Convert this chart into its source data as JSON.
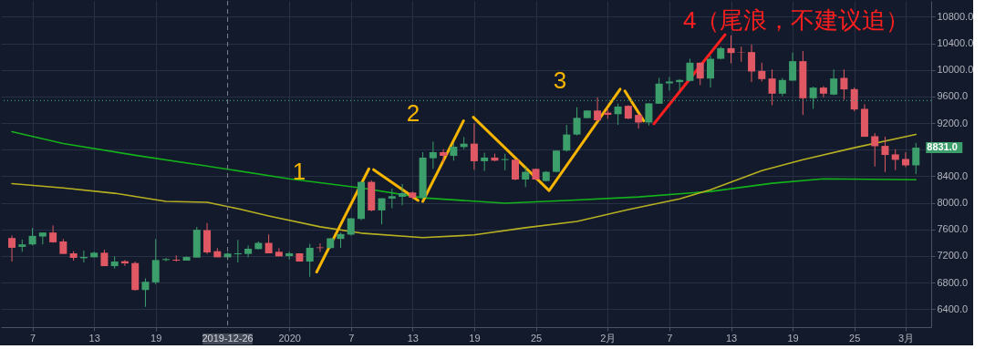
{
  "chart_data": {
    "type": "candlestick",
    "x": [
      "2019-12-05",
      "2019-12-06",
      "2019-12-07",
      "2019-12-08",
      "2019-12-09",
      "2019-12-10",
      "2019-12-11",
      "2019-12-12",
      "2019-12-13",
      "2019-12-14",
      "2019-12-15",
      "2019-12-16",
      "2019-12-17",
      "2019-12-18",
      "2019-12-19",
      "2019-12-20",
      "2019-12-21",
      "2019-12-22",
      "2019-12-23",
      "2019-12-24",
      "2019-12-25",
      "2019-12-26",
      "2019-12-27",
      "2019-12-28",
      "2019-12-29",
      "2019-12-30",
      "2019-12-31",
      "2020-01-01",
      "2020-01-02",
      "2020-01-03",
      "2020-01-04",
      "2020-01-05",
      "2020-01-06",
      "2020-01-07",
      "2020-01-08",
      "2020-01-09",
      "2020-01-10",
      "2020-01-11",
      "2020-01-12",
      "2020-01-13",
      "2020-01-14",
      "2020-01-15",
      "2020-01-16",
      "2020-01-17",
      "2020-01-18",
      "2020-01-19",
      "2020-01-20",
      "2020-01-21",
      "2020-01-22",
      "2020-01-23",
      "2020-01-24",
      "2020-01-25",
      "2020-01-26",
      "2020-01-27",
      "2020-01-28",
      "2020-01-29",
      "2020-01-30",
      "2020-01-31",
      "2020-02-01",
      "2020-02-02",
      "2020-02-03",
      "2020-02-04",
      "2020-02-05",
      "2020-02-06",
      "2020-02-07",
      "2020-02-08",
      "2020-02-09",
      "2020-02-10",
      "2020-02-11",
      "2020-02-12",
      "2020-02-13",
      "2020-02-14",
      "2020-02-15",
      "2020-02-16",
      "2020-02-17",
      "2020-02-18",
      "2020-02-19",
      "2020-02-20",
      "2020-02-21",
      "2020-02-22",
      "2020-02-23",
      "2020-02-24",
      "2020-02-25",
      "2020-02-26",
      "2020-02-27",
      "2020-02-28",
      "2020-02-29",
      "2020-03-01",
      "2020-03-02"
    ],
    "ohlc": [
      [
        7471,
        7508,
        7117,
        7324
      ],
      [
        7338,
        7448,
        7264,
        7375
      ],
      [
        7375,
        7623,
        7360,
        7503
      ],
      [
        7494,
        7554,
        7375,
        7554
      ],
      [
        7554,
        7660,
        7400,
        7407
      ],
      [
        7420,
        7457,
        7232,
        7232
      ],
      [
        7241,
        7273,
        7131,
        7172
      ],
      [
        7167,
        7283,
        7103,
        7186
      ],
      [
        7181,
        7264,
        7181,
        7250
      ],
      [
        7250,
        7296,
        7048,
        7048
      ],
      [
        7048,
        7195,
        7011,
        7117
      ],
      [
        7122,
        7140,
        7052,
        7089
      ],
      [
        7094,
        7117,
        6680,
        6689
      ],
      [
        6689,
        6864,
        6436,
        6813
      ],
      [
        6804,
        7457,
        6776,
        7140
      ],
      [
        7140,
        7170,
        7120,
        7155
      ],
      [
        7145,
        7209,
        7117,
        7131
      ],
      [
        7131,
        7195,
        7131,
        7186
      ],
      [
        7177,
        7637,
        7177,
        7595
      ],
      [
        7590,
        7697,
        7232,
        7255
      ],
      [
        7273,
        7319,
        7181,
        7181
      ],
      [
        7181,
        7255,
        7140,
        7237
      ],
      [
        7227,
        7443,
        7103,
        7241
      ],
      [
        7232,
        7360,
        7181,
        7310
      ],
      [
        7305,
        7420,
        7300,
        7398
      ],
      [
        7398,
        7526,
        7241,
        7241
      ],
      [
        7264,
        7319,
        7195,
        7195
      ],
      [
        7200,
        7264,
        7150,
        7241
      ],
      [
        7241,
        7241,
        7117,
        7117
      ],
      [
        7117,
        7384,
        6887,
        7324
      ],
      [
        7330,
        7390,
        7260,
        7320
      ],
      [
        7320,
        7470,
        7310,
        7467
      ],
      [
        7458,
        7553,
        7325,
        7531
      ],
      [
        7522,
        7770,
        7510,
        7768
      ],
      [
        7759,
        8320,
        7740,
        8316
      ],
      [
        8316,
        8340,
        7873,
        7887
      ],
      [
        7887,
        8069,
        7677,
        8069
      ],
      [
        8065,
        8216,
        7919,
        8101
      ],
      [
        8092,
        8284,
        7964,
        8147
      ],
      [
        8156,
        8170,
        8056,
        8078
      ],
      [
        8078,
        8763,
        8056,
        8681
      ],
      [
        8672,
        8923,
        8512,
        8763
      ],
      [
        8763,
        8809,
        8604,
        8708
      ],
      [
        8708,
        8900,
        8635,
        8846
      ],
      [
        8841,
        8992,
        8809,
        8891
      ],
      [
        8892,
        9198,
        8499,
        8627
      ],
      [
        8627,
        8755,
        8480,
        8682
      ],
      [
        8682,
        8741,
        8627,
        8636
      ],
      [
        8645,
        8741,
        8490,
        8659
      ],
      [
        8650,
        8655,
        8339,
        8352
      ],
      [
        8352,
        8535,
        8238,
        8467
      ],
      [
        8512,
        8515,
        8343,
        8352
      ],
      [
        8330,
        8480,
        8320,
        8467
      ],
      [
        8467,
        8790,
        8460,
        8787
      ],
      [
        8787,
        9175,
        8773,
        9029
      ],
      [
        9029,
        9440,
        9015,
        9280
      ],
      [
        9276,
        9395,
        9270,
        9390
      ],
      [
        9390,
        9586,
        9220,
        9243
      ],
      [
        9358,
        9426,
        9266,
        9326
      ],
      [
        9335,
        9495,
        9175,
        9450
      ],
      [
        9461,
        9470,
        9260,
        9269
      ],
      [
        9324,
        9347,
        9118,
        9210
      ],
      [
        9210,
        9500,
        9164,
        9498
      ],
      [
        9493,
        9881,
        9490,
        9795
      ],
      [
        9799,
        9895,
        9690,
        9827
      ],
      [
        9818,
        9863,
        9690,
        9850
      ],
      [
        9836,
        10169,
        9830,
        10110
      ],
      [
        10110,
        10115,
        9772,
        9872
      ],
      [
        9872,
        10215,
        9735,
        10169
      ],
      [
        10169,
        10352,
        10160,
        10329
      ],
      [
        10329,
        10521,
        10101,
        10256
      ],
      [
        10270,
        10352,
        10124,
        10265
      ],
      [
        10270,
        10384,
        9818,
        9977
      ],
      [
        9986,
        10110,
        9827,
        9863
      ],
      [
        9872,
        10009,
        9470,
        9644
      ],
      [
        9644,
        9881,
        9607,
        9850
      ],
      [
        9840,
        10261,
        9840,
        10133
      ],
      [
        10133,
        10284,
        9324,
        9575
      ],
      [
        9575,
        9749,
        9415,
        9735
      ],
      [
        9735,
        9758,
        9589,
        9644
      ],
      [
        9630,
        10009,
        9620,
        9872
      ],
      [
        9881,
        10009,
        9552,
        9708
      ],
      [
        9712,
        9735,
        9379,
        9406
      ],
      [
        9415,
        9484,
        8995,
        8995
      ],
      [
        9004,
        9050,
        8547,
        8853
      ],
      [
        8858,
        8995,
        8465,
        8721
      ],
      [
        8730,
        8808,
        8492,
        8648
      ],
      [
        8661,
        8762,
        8538,
        8565
      ],
      [
        8565,
        8903,
        8433,
        8831
      ]
    ],
    "colors": [
      "#e05863",
      "#3c9f6b",
      "#3c9f6b",
      "#3c9f6b",
      "#e05863",
      "#e05863",
      "#e05863",
      "#3c9f6b",
      "#3c9f6b",
      "#e05863",
      "#3c9f6b",
      "#e05863",
      "#e05863",
      "#3c9f6b",
      "#3c9f6b",
      "#3c9f6b",
      "#e05863",
      "#3c9f6b",
      "#3c9f6b",
      "#e05863",
      "#e05863",
      "#3c9f6b",
      "#3c9f6b",
      "#3c9f6b",
      "#3c9f6b",
      "#e05863",
      "#e05863",
      "#3c9f6b",
      "#e05863",
      "#3c9f6b",
      "#e05863",
      "#3c9f6b",
      "#3c9f6b",
      "#3c9f6b",
      "#3c9f6b",
      "#e05863",
      "#3c9f6b",
      "#3c9f6b",
      "#3c9f6b",
      "#e05863",
      "#3c9f6b",
      "#3c9f6b",
      "#e05863",
      "#3c9f6b",
      "#3c9f6b",
      "#e05863",
      "#3c9f6b",
      "#e05863",
      "#3c9f6b",
      "#e05863",
      "#3c9f6b",
      "#e05863",
      "#3c9f6b",
      "#3c9f6b",
      "#3c9f6b",
      "#3c9f6b",
      "#3c9f6b",
      "#e05863",
      "#e05863",
      "#3c9f6b",
      "#e05863",
      "#e05863",
      "#3c9f6b",
      "#3c9f6b",
      "#3c9f6b",
      "#3c9f6b",
      "#3c9f6b",
      "#e05863",
      "#3c9f6b",
      "#3c9f6b",
      "#e05863",
      "#e05863",
      "#e05863",
      "#e05863",
      "#e05863",
      "#3c9f6b",
      "#3c9f6b",
      "#e05863",
      "#3c9f6b",
      "#e05863",
      "#3c9f6b",
      "#e05863",
      "#e05863",
      "#e05863",
      "#e05863",
      "#e05863",
      "#e05863",
      "#e05863",
      "#3c9f6b"
    ],
    "series": [
      {
        "type": "line",
        "color": "#13b21a",
        "x": [
          "2019-12-05",
          "2019-12-10",
          "2019-12-17",
          "2019-12-24",
          "2020-01-01",
          "2020-01-08",
          "2020-01-14",
          "2020-01-22",
          "2020-01-28",
          "2020-02-04",
          "2020-02-11",
          "2020-02-17",
          "2020-02-22",
          "2020-03-02"
        ],
        "values": [
          9072,
          8894,
          8717,
          8554,
          8363,
          8226,
          8076,
          7995,
          8036,
          8090,
          8172,
          8295,
          8363,
          8349
        ]
      },
      {
        "type": "line",
        "color": "#b7b021",
        "x": [
          "2019-12-05",
          "2019-12-10",
          "2019-12-15",
          "2019-12-20",
          "2019-12-24",
          "2019-12-27",
          "2019-12-30",
          "2020-01-04",
          "2020-01-08",
          "2020-01-14",
          "2020-01-19",
          "2020-01-24",
          "2020-01-29",
          "2020-02-03",
          "2020-02-08",
          "2020-02-11",
          "2020-02-16",
          "2020-02-20",
          "2020-02-25",
          "2020-03-02"
        ],
        "values": [
          8290,
          8226,
          8145,
          8022,
          8008,
          7913,
          7804,
          7640,
          7545,
          7477,
          7518,
          7627,
          7722,
          7899,
          8060,
          8199,
          8485,
          8650,
          8830,
          9031
        ]
      },
      {
        "type": "line",
        "color": "#f7b500",
        "x": [
          "2020-01-03T16:00",
          "2020-01-08T18:00"
        ],
        "values": [
          6960,
          8513
        ]
      },
      {
        "type": "line",
        "color": "#f7b500",
        "x": [
          "2020-01-09T05:00",
          "2020-01-13T13:00"
        ],
        "values": [
          8500,
          8036
        ]
      },
      {
        "type": "line",
        "color": "#f7b500",
        "x": [
          "2020-01-14T00:00",
          "2020-01-17T23:00"
        ],
        "values": [
          8022,
          9235
        ]
      },
      {
        "type": "line",
        "color": "#f7b500",
        "x": [
          "2020-01-18T22:00",
          "2020-01-26T07:00",
          "2020-02-02T05:00"
        ],
        "values": [
          9290,
          8186,
          9712
        ]
      },
      {
        "type": "line",
        "color": "#f7b500",
        "x": [
          "2020-02-02T16:00",
          "2020-02-04T12:00"
        ],
        "values": [
          9685,
          9235
        ]
      },
      {
        "type": "line",
        "color": "#ff1f1f",
        "x": [
          "2020-02-05T12:00",
          "2020-02-12T10:00"
        ],
        "values": [
          9190,
          10530
        ]
      }
    ],
    "xlim": [
      "2019-12-04T09:00",
      "2020-03-03T01:00"
    ],
    "xticks": [
      {
        "value": "2019-12-07",
        "label": "7"
      },
      {
        "value": "2019-12-13",
        "label": "13"
      },
      {
        "value": "2019-12-19",
        "label": "19"
      },
      {
        "value": "2020-01-01",
        "label": "2020"
      },
      {
        "value": "2020-01-07",
        "label": "7"
      },
      {
        "value": "2020-01-13",
        "label": "13"
      },
      {
        "value": "2020-01-19",
        "label": "19"
      },
      {
        "value": "2020-01-25",
        "label": "25"
      },
      {
        "value": "2020-02-01",
        "label": "2月"
      },
      {
        "value": "2020-02-07",
        "label": "7"
      },
      {
        "value": "2020-02-13",
        "label": "13"
      },
      {
        "value": "2020-02-19",
        "label": "19"
      },
      {
        "value": "2020-02-25",
        "label": "25"
      },
      {
        "value": "2020-03-01",
        "label": "3月"
      }
    ],
    "ylim": [
      6130,
      11040
    ],
    "yticks": [
      {
        "value": 6400,
        "label": "6400.0"
      },
      {
        "value": 6800,
        "label": "6800.0"
      },
      {
        "value": 7200,
        "label": "7200.0"
      },
      {
        "value": 7600,
        "label": "7600.0"
      },
      {
        "value": 8000,
        "label": "8000.0"
      },
      {
        "value": 8400,
        "label": "8400.0"
      },
      {
        "value": 8800,
        "label": null
      },
      {
        "value": 9200,
        "label": "9200.0"
      },
      {
        "value": 9600,
        "label": "9600.0"
      },
      {
        "value": 10000,
        "label": "10000.0"
      },
      {
        "value": 10400,
        "label": "10400.0"
      },
      {
        "value": 10800,
        "label": "10800.0"
      }
    ],
    "ref_lines": [
      {
        "axis": "y",
        "value": 9540,
        "color": "#2e9b74",
        "line_style": "dotted"
      },
      {
        "axis": "x",
        "value": "2019-12-26",
        "label": "2019-12-26",
        "color": "#7d8290",
        "line_style": "dashed"
      }
    ],
    "annotations": [
      "1",
      "2",
      "3",
      "4（尾浪，不建议追）",
      {
        "text": "8831.0",
        "x": "2020-03-02",
        "y": 8831
      }
    ],
    "grid": true
  }
}
